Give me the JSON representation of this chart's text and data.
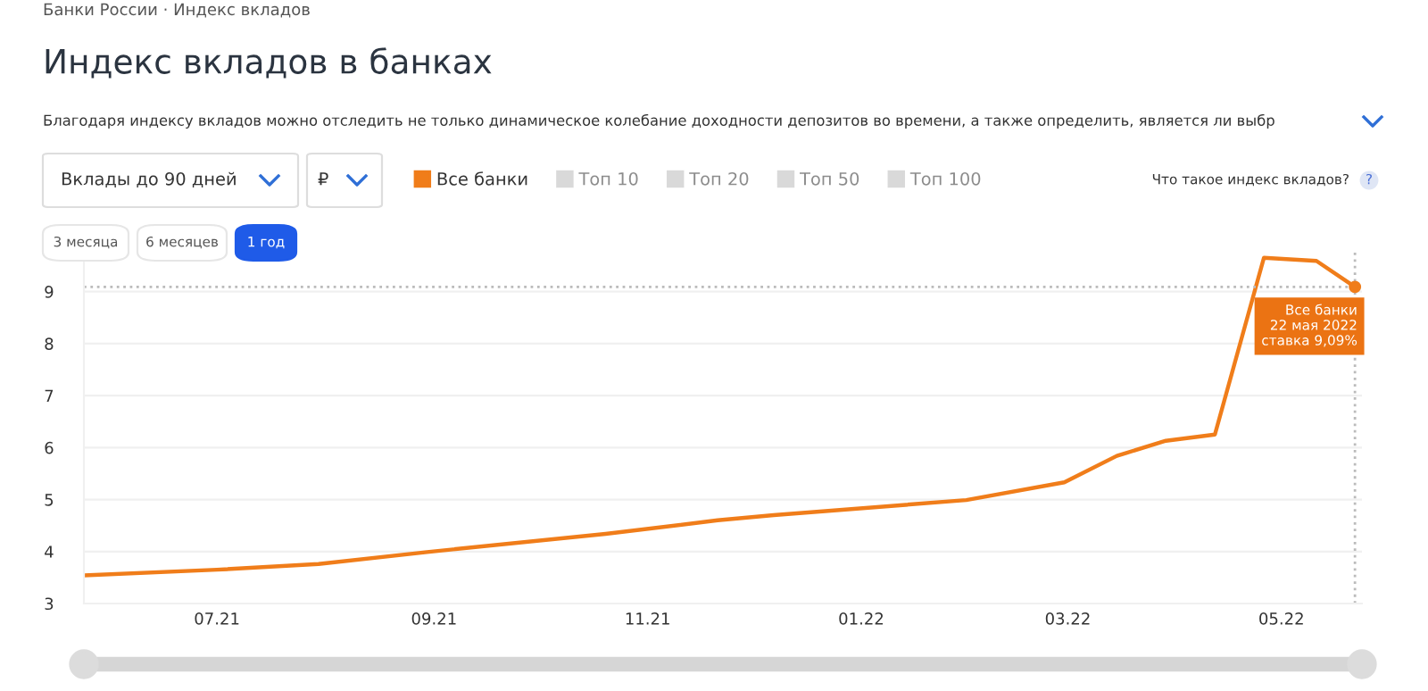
{
  "chart_data": {
    "type": "line",
    "title": "Индекс вкладов в банках",
    "x": [
      "2021-05-24",
      "2021-07-01",
      "2021-07-30",
      "2021-08-30",
      "2021-10-20",
      "2021-11-21",
      "2021-12-07",
      "2022-01-31",
      "2022-02-28",
      "2022-03-15",
      "2022-03-29",
      "2022-04-12",
      "2022-04-26",
      "2022-05-11",
      "2022-05-22"
    ],
    "series": [
      {
        "name": "Все банки",
        "color": "#f07d1a",
        "values": [
          3.54,
          3.65,
          3.76,
          3.99,
          4.34,
          4.6,
          4.7,
          4.99,
          5.33,
          5.84,
          6.13,
          6.25,
          9.65,
          9.59,
          9.09
        ]
      },
      {
        "name": "Топ 10",
        "color": "#d9d9d9",
        "values": [
          null,
          null,
          null,
          null,
          null,
          null,
          null,
          null,
          null,
          null,
          null,
          null,
          null,
          null,
          null
        ]
      },
      {
        "name": "Топ 20",
        "color": "#d9d9d9",
        "values": [
          null,
          null,
          null,
          null,
          null,
          null,
          null,
          null,
          null,
          null,
          null,
          null,
          null,
          null,
          null
        ]
      },
      {
        "name": "Топ 50",
        "color": "#d9d9d9",
        "values": [
          null,
          null,
          null,
          null,
          null,
          null,
          null,
          null,
          null,
          null,
          null,
          null,
          null,
          null,
          null
        ]
      },
      {
        "name": "Топ 100",
        "color": "#d9d9d9",
        "values": [
          null,
          null,
          null,
          null,
          null,
          null,
          null,
          null,
          null,
          null,
          null,
          null,
          null,
          null,
          null
        ]
      }
    ],
    "xlim": [
      "2021-05-24",
      "2022-05-24"
    ],
    "xticks": [
      {
        "value": "2021-07-01",
        "label": "07.21"
      },
      {
        "value": "2021-09-01",
        "label": "09.21"
      },
      {
        "value": "2021-11-01",
        "label": "11.21"
      },
      {
        "value": "2022-01-01",
        "label": "01.22"
      },
      {
        "value": "2022-03-01",
        "label": "03.22"
      },
      {
        "value": "2022-05-01",
        "label": "05.22"
      }
    ],
    "ylim": [
      3,
      9.8
    ],
    "yticks": [
      3,
      4,
      5,
      6,
      7,
      8,
      9
    ],
    "grid": "y",
    "legend": "top",
    "marker": "none",
    "line_style": "solid",
    "ref_lines": [
      {
        "axis": "y",
        "value": 9.09,
        "color": "#bbbbbb",
        "line_style": "dotted"
      },
      {
        "axis": "x",
        "value": "2022-05-22",
        "color": "#bbbbbb",
        "line_style": "dotted"
      }
    ],
    "annotations": [
      "Банки России · Индекс вкладов",
      "Благодаря индексу вкладов можно отследить не только динамическое колебание доходности депозитов во времени, а также определить, является ли выбр",
      "Вклады до 90 дней",
      "₽",
      "Что такое индекс вкладов?",
      "?",
      "3 месяца",
      "6 месяцев",
      "1 год",
      {
        "text": "Все банки\n22 мая 2022\nставка 9,09%",
        "x": "2022-05-22",
        "y": 9.09
      }
    ]
  }
}
